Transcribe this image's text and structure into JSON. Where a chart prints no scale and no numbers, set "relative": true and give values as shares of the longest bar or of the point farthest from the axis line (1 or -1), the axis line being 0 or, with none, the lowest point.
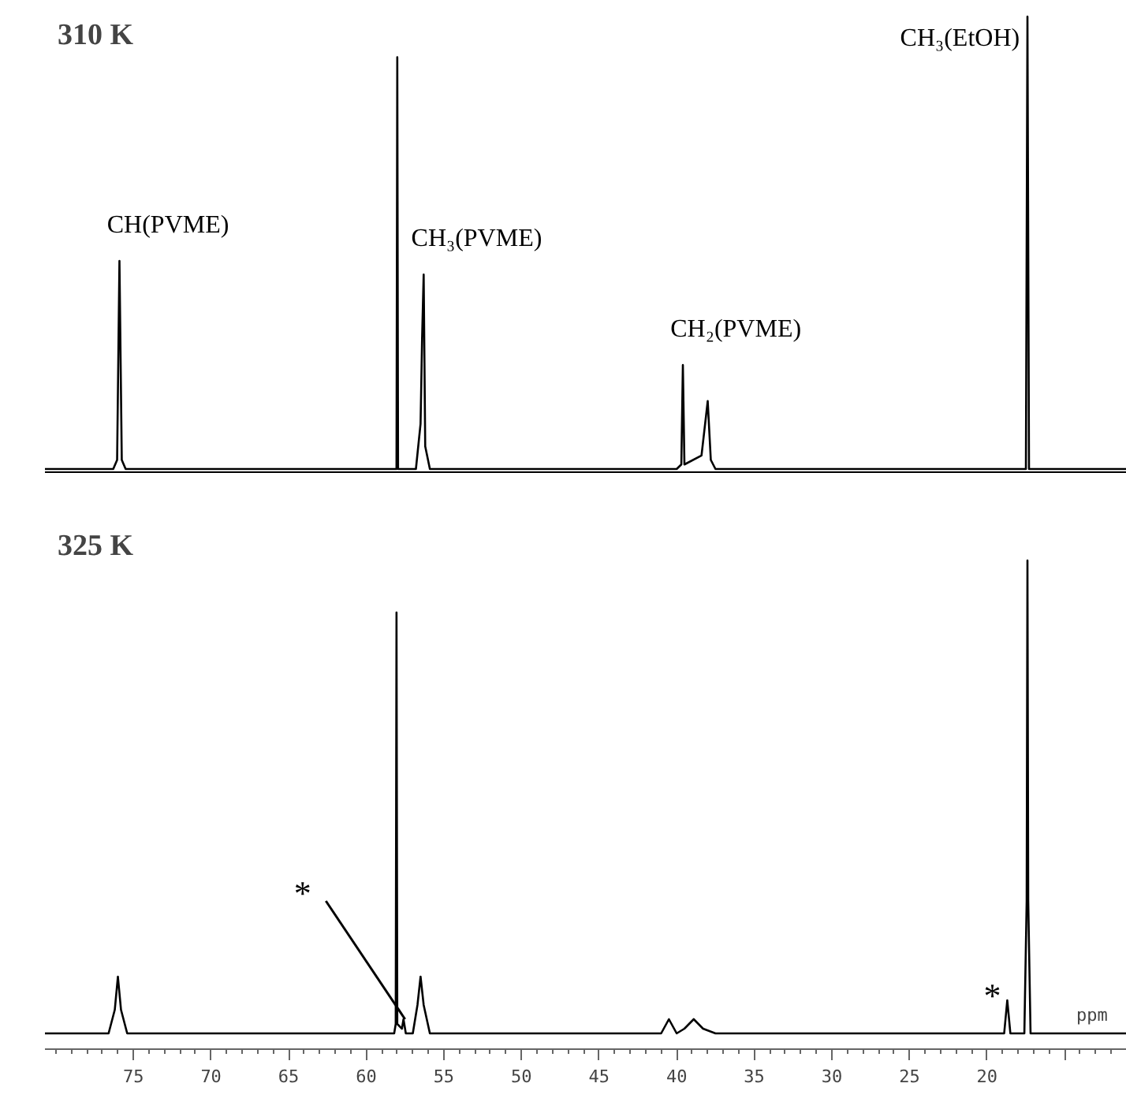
{
  "chart_data": [
    {
      "type": "line",
      "title": "310 K",
      "relative": true,
      "tick_labels": false,
      "xlim": [
        80.7,
        11
      ],
      "color": "#000000",
      "x": [
        80.7,
        76.3,
        76.05,
        75.9,
        75.75,
        75.5,
        58.3,
        58.05,
        58.0,
        57.95,
        56.8,
        56.5,
        56.4,
        56.3,
        56.2,
        55.9,
        40.0,
        39.7,
        39.6,
        39.5,
        38.4,
        38.0,
        37.8,
        37.5,
        17.5,
        17.4,
        17.3,
        11
      ],
      "values": [
        0,
        0,
        0.02,
        0.46,
        0.02,
        0,
        0,
        0,
        0.91,
        0,
        0,
        0.1,
        0.29,
        0.43,
        0.05,
        0,
        0,
        0.01,
        0.23,
        0.01,
        0.03,
        0.15,
        0.02,
        0,
        0,
        1,
        0,
        0
      ],
      "annotations": [
        {
          "text": "CH(PVME)",
          "x": 75.9,
          "y": 0.46
        },
        {
          "text": "CH₃(PVME)",
          "x": 56.3,
          "y": 0.43
        },
        {
          "text": "CH₂(PVME)",
          "x": 39.6,
          "y": 0.23
        },
        {
          "text": "CH₃(EtOH)",
          "x": 17.4,
          "y": 1
        }
      ]
    },
    {
      "type": "line",
      "title": "325 K",
      "relative": true,
      "tick_labels": "x",
      "xlim": [
        80.7,
        11
      ],
      "xlabel": "ppm",
      "color": "#000000",
      "xticks": [
        75,
        70,
        65,
        60,
        55,
        50,
        45,
        40,
        35,
        30,
        25,
        20,
        {
          "value": 15,
          "label": null
        }
      ],
      "x": [
        80.7,
        76.6,
        76.2,
        76.0,
        75.8,
        75.4,
        58.2,
        58.1,
        58.05,
        58.0,
        57.7,
        57.6,
        57.45,
        57.0,
        56.7,
        56.5,
        56.3,
        55.9,
        41,
        40.5,
        40.0,
        39.5,
        38.9,
        38.3,
        37.5,
        18.9,
        18.7,
        18.5,
        17.6,
        17.45,
        17.4,
        17.35,
        17.2,
        11
      ],
      "values": [
        0,
        0,
        0.05,
        0.12,
        0.05,
        0,
        0,
        0.02,
        0.89,
        0.02,
        0.01,
        0.03,
        0,
        0,
        0.06,
        0.12,
        0.06,
        0,
        0,
        0.03,
        0,
        0.01,
        0.03,
        0.01,
        0,
        0,
        0.07,
        0,
        0,
        0.28,
        1,
        0.28,
        0,
        0
      ],
      "annotations": [
        {
          "text": "*",
          "x": 57.6,
          "y": 0.03
        },
        {
          "text": "*",
          "x": 18.7,
          "y": 0.07
        }
      ]
    }
  ]
}
